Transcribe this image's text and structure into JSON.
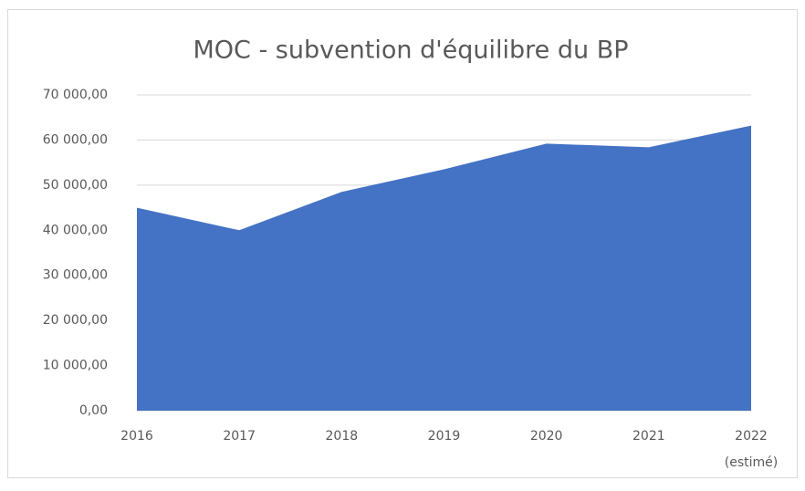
{
  "chart_data": {
    "type": "area",
    "title": "MOC - subvention d'équilibre du BP",
    "categories": [
      "2016",
      "2017",
      "2018",
      "2019",
      "2020",
      "2021",
      "2022 (estimé)"
    ],
    "values": [
      45000,
      40000,
      48500,
      53500,
      59200,
      58400,
      63200
    ],
    "color": "#4472c4",
    "ylim": [
      0,
      70000
    ],
    "yticks": [
      {
        "value": 0,
        "label": "0,00"
      },
      {
        "value": 10000,
        "label": "10 000,00"
      },
      {
        "value": 20000,
        "label": "20 000,00"
      },
      {
        "value": 30000,
        "label": "30 000,00"
      },
      {
        "value": 40000,
        "label": "40 000,00"
      },
      {
        "value": 50000,
        "label": "50 000,00"
      },
      {
        "value": 60000,
        "label": "60 000,00"
      },
      {
        "value": 70000,
        "label": "70 000,00"
      }
    ],
    "grid": true
  }
}
